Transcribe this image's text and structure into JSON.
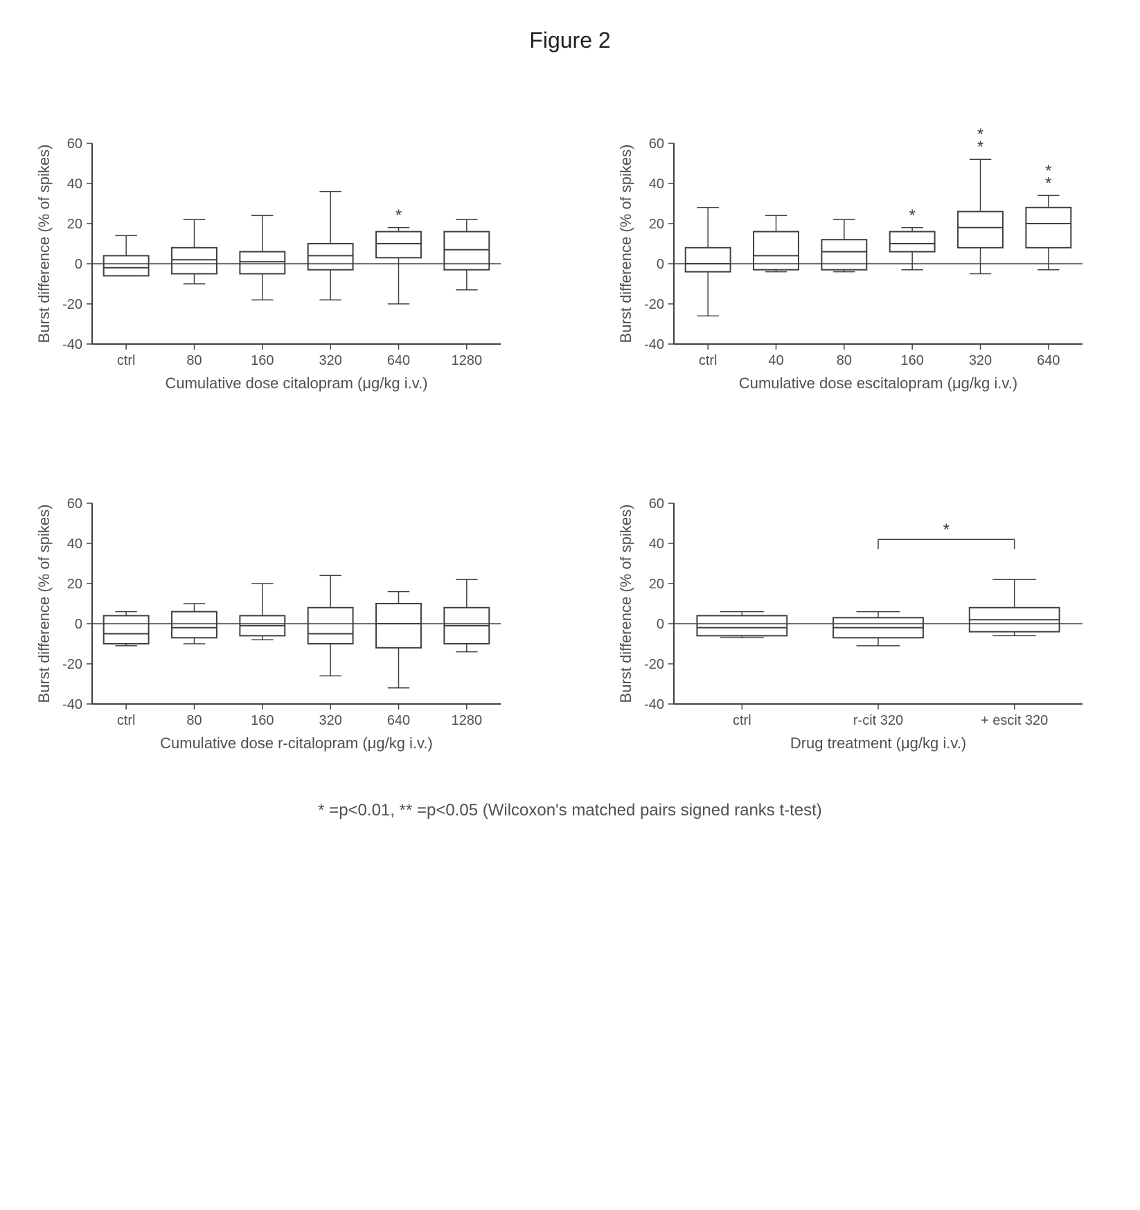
{
  "figure_title": "Figure 2",
  "caption": "* =p<0.01, ** =p<0.05 (Wilcoxon's matched pairs signed ranks t-test)",
  "global": {
    "ylim": [
      -40,
      60
    ],
    "yticks": [
      -40,
      -20,
      0,
      20,
      40,
      60
    ],
    "ylabel": "Burst difference (% of spikes)",
    "box_stroke": "#404040",
    "text_color": "#505050",
    "bg": "#ffffff",
    "box_halfwidth": 0.33,
    "cap_halfwidth": 0.16,
    "label_fontsize": 22,
    "tick_fontsize": 20
  },
  "panels": [
    {
      "id": "A",
      "xlabel": "Cumulative dose citalopram (μg/kg i.v.)",
      "categories": [
        "ctrl",
        "80",
        "160",
        "320",
        "640",
        "1280"
      ],
      "boxes": [
        {
          "q1": -6,
          "median": -2,
          "q3": 4,
          "lo": -6,
          "hi": 14,
          "star": ""
        },
        {
          "q1": -5,
          "median": 2,
          "q3": 8,
          "lo": -10,
          "hi": 22,
          "star": ""
        },
        {
          "q1": -5,
          "median": 1,
          "q3": 6,
          "lo": -18,
          "hi": 24,
          "star": ""
        },
        {
          "q1": -3,
          "median": 4,
          "q3": 10,
          "lo": -18,
          "hi": 36,
          "star": ""
        },
        {
          "q1": 3,
          "median": 10,
          "q3": 16,
          "lo": -20,
          "hi": 18,
          "star": "*"
        },
        {
          "q1": -3,
          "median": 7,
          "q3": 16,
          "lo": -13,
          "hi": 22,
          "star": ""
        }
      ]
    },
    {
      "id": "B",
      "xlabel": "Cumulative dose escitalopram (μg/kg i.v.)",
      "categories": [
        "ctrl",
        "40",
        "80",
        "160",
        "320",
        "640"
      ],
      "boxes": [
        {
          "q1": -4,
          "median": 0,
          "q3": 8,
          "lo": -26,
          "hi": 28,
          "star": ""
        },
        {
          "q1": -3,
          "median": 4,
          "q3": 16,
          "lo": -4,
          "hi": 24,
          "star": ""
        },
        {
          "q1": -3,
          "median": 6,
          "q3": 12,
          "lo": -4,
          "hi": 22,
          "star": ""
        },
        {
          "q1": 6,
          "median": 10,
          "q3": 16,
          "lo": -3,
          "hi": 18,
          "star": "*"
        },
        {
          "q1": 8,
          "median": 18,
          "q3": 26,
          "lo": -5,
          "hi": 52,
          "star": "**"
        },
        {
          "q1": 8,
          "median": 20,
          "q3": 28,
          "lo": -3,
          "hi": 34,
          "star": "**"
        }
      ]
    },
    {
      "id": "C",
      "xlabel": "Cumulative dose r-citalopram (μg/kg i.v.)",
      "categories": [
        "ctrl",
        "80",
        "160",
        "320",
        "640",
        "1280"
      ],
      "boxes": [
        {
          "q1": -10,
          "median": -5,
          "q3": 4,
          "lo": -11,
          "hi": 6,
          "star": ""
        },
        {
          "q1": -7,
          "median": -2,
          "q3": 6,
          "lo": -10,
          "hi": 10,
          "star": ""
        },
        {
          "q1": -6,
          "median": -1,
          "q3": 4,
          "lo": -8,
          "hi": 20,
          "star": ""
        },
        {
          "q1": -10,
          "median": -5,
          "q3": 8,
          "lo": -26,
          "hi": 24,
          "star": ""
        },
        {
          "q1": -12,
          "median": 0,
          "q3": 10,
          "lo": -32,
          "hi": 16,
          "star": ""
        },
        {
          "q1": -10,
          "median": -1,
          "q3": 8,
          "lo": -14,
          "hi": 22,
          "star": ""
        }
      ]
    },
    {
      "id": "D",
      "xlabel": "Drug treatment (μg/kg i.v.)",
      "categories": [
        "ctrl",
        "r-cit 320",
        "+ escit 320"
      ],
      "boxes": [
        {
          "q1": -6,
          "median": -2,
          "q3": 4,
          "lo": -7,
          "hi": 6,
          "star": ""
        },
        {
          "q1": -7,
          "median": -2,
          "q3": 3,
          "lo": -11,
          "hi": 6,
          "star": ""
        },
        {
          "q1": -4,
          "median": 2,
          "q3": 8,
          "lo": -6,
          "hi": 22,
          "star": ""
        }
      ],
      "bracket": {
        "from": 1,
        "to": 2,
        "y": 42,
        "label": "*"
      }
    }
  ]
}
